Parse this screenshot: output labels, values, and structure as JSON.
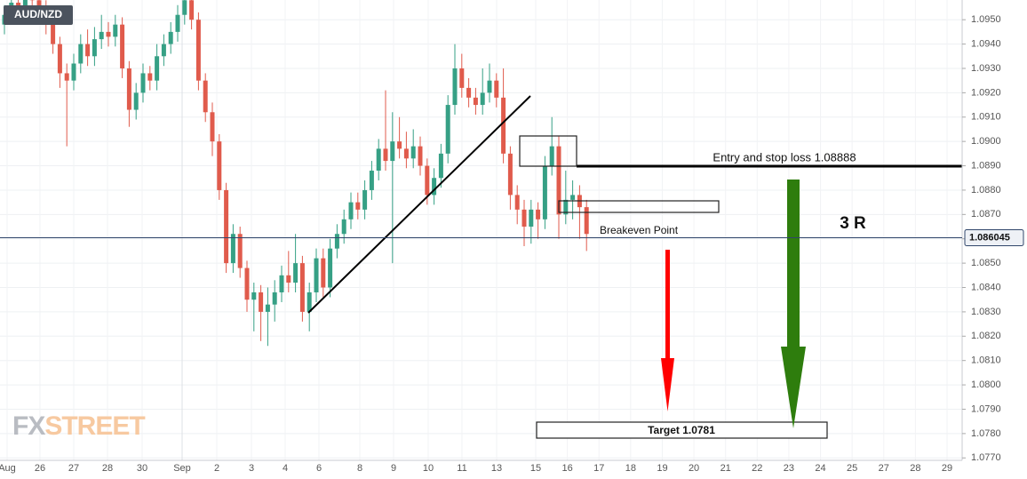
{
  "chart_data": {
    "type": "candlestick",
    "title": "AUD/NZD",
    "up_color": "#36a085",
    "down_color": "#e05b4c",
    "ylim": [
      1.0769,
      1.09581
    ],
    "yticks": [
      {
        "value": 1.095,
        "label": "1.0950"
      },
      {
        "value": 1.094,
        "label": "1.0940"
      },
      {
        "value": 1.093,
        "label": "1.0930"
      },
      {
        "value": 1.092,
        "label": "1.0920"
      },
      {
        "value": 1.091,
        "label": "1.0910"
      },
      {
        "value": 1.09,
        "label": "1.0900"
      },
      {
        "value": 1.089,
        "label": "1.0890"
      },
      {
        "value": 1.088,
        "label": "1.0880"
      },
      {
        "value": 1.087,
        "label": "1.0870"
      },
      {
        "value": 1.086,
        "label": "1.0860"
      },
      {
        "value": 1.085,
        "label": "1.0850"
      },
      {
        "value": 1.084,
        "label": "1.0840"
      },
      {
        "value": 1.083,
        "label": "1.0830"
      },
      {
        "value": 1.082,
        "label": "1.0820"
      },
      {
        "value": 1.081,
        "label": "1.0810"
      },
      {
        "value": 1.08,
        "label": "1.0800"
      },
      {
        "value": 1.079,
        "label": "1.0790"
      },
      {
        "value": 1.078,
        "label": "1.0780"
      },
      {
        "value": 1.077,
        "label": "1.0770"
      }
    ],
    "grid": true,
    "last_price": 1.086045,
    "x_labels": [
      "Aug",
      "26",
      "27",
      "28",
      "30",
      "Sep",
      "2",
      "3",
      "4",
      "6",
      "8",
      "9",
      "10",
      "11",
      "13",
      "15",
      "16",
      "17",
      "18",
      "19",
      "20",
      "21",
      "22",
      "23",
      "24",
      "25",
      "27",
      "28",
      "29"
    ],
    "candles": [
      [
        1.0948,
        1.0956,
        1.0944,
        1.0952
      ],
      [
        1.0952,
        1.0961,
        1.0948,
        1.0957
      ],
      [
        1.0957,
        1.0961,
        1.0951,
        1.0955
      ],
      [
        1.0955,
        1.0964,
        1.0951,
        1.096
      ],
      [
        1.096,
        1.0963,
        1.0954,
        1.0958
      ],
      [
        1.0958,
        1.0962,
        1.0951,
        1.0955
      ],
      [
        1.0955,
        1.0958,
        1.0944,
        1.0948
      ],
      [
        1.0948,
        1.0951,
        1.0936,
        1.094
      ],
      [
        1.094,
        1.0943,
        1.0922,
        1.0928
      ],
      [
        1.0928,
        1.0932,
        1.0898,
        1.0925
      ],
      [
        1.0925,
        1.0936,
        1.0921,
        1.0932
      ],
      [
        1.0932,
        1.0944,
        1.0928,
        1.094
      ],
      [
        1.094,
        1.0946,
        1.0931,
        1.0935
      ],
      [
        1.0935,
        1.0947,
        1.0931,
        1.0942
      ],
      [
        1.0942,
        1.0952,
        1.0938,
        1.0945
      ],
      [
        1.0945,
        1.0949,
        1.0939,
        1.0943
      ],
      [
        1.0943,
        1.0952,
        1.0939,
        1.0948
      ],
      [
        1.0948,
        1.0951,
        1.0926,
        1.093
      ],
      [
        1.093,
        1.0933,
        1.0906,
        1.0913
      ],
      [
        1.0913,
        1.0924,
        1.0909,
        1.092
      ],
      [
        1.092,
        1.0932,
        1.0916,
        1.0928
      ],
      [
        1.0928,
        1.0931,
        1.0921,
        1.0925
      ],
      [
        1.0925,
        1.094,
        1.0921,
        1.0935
      ],
      [
        1.0935,
        1.0944,
        1.0931,
        1.094
      ],
      [
        1.094,
        1.0949,
        1.0936,
        1.0945
      ],
      [
        1.0945,
        1.0956,
        1.0941,
        1.0952
      ],
      [
        1.0952,
        1.0962,
        1.0948,
        1.0958
      ],
      [
        1.0958,
        1.0962,
        1.0946,
        1.095
      ],
      [
        1.095,
        1.0953,
        1.0921,
        1.0925
      ],
      [
        1.0925,
        1.0928,
        1.0908,
        1.0912
      ],
      [
        1.0912,
        1.0916,
        1.0894,
        1.09
      ],
      [
        1.09,
        1.0903,
        1.0876,
        1.088
      ],
      [
        1.088,
        1.0883,
        1.0846,
        1.085
      ],
      [
        1.085,
        1.0866,
        1.0846,
        1.0862
      ],
      [
        1.0862,
        1.0865,
        1.0844,
        1.0848
      ],
      [
        1.0848,
        1.0851,
        1.083,
        1.0835
      ],
      [
        1.0835,
        1.0842,
        1.0822,
        1.0838
      ],
      [
        1.0838,
        1.0841,
        1.0818,
        1.083
      ],
      [
        1.083,
        1.084,
        1.0816,
        1.0833
      ],
      [
        1.0833,
        1.0843,
        1.0826,
        1.0838
      ],
      [
        1.0838,
        1.0849,
        1.0834,
        1.0845
      ],
      [
        1.0845,
        1.0855,
        1.0838,
        1.0842
      ],
      [
        1.0842,
        1.0862,
        1.0838,
        1.085
      ],
      [
        1.085,
        1.0853,
        1.0826,
        1.083
      ],
      [
        1.083,
        1.0842,
        1.0822,
        1.0838
      ],
      [
        1.0838,
        1.0856,
        1.0834,
        1.0852
      ],
      [
        1.0852,
        1.0856,
        1.0836,
        1.084
      ],
      [
        1.084,
        1.086,
        1.0836,
        1.0856
      ],
      [
        1.0856,
        1.0866,
        1.0852,
        1.0862
      ],
      [
        1.0862,
        1.0872,
        1.0858,
        1.0868
      ],
      [
        1.0868,
        1.0879,
        1.0864,
        1.0875
      ],
      [
        1.0875,
        1.0879,
        1.0868,
        1.0872
      ],
      [
        1.0872,
        1.0884,
        1.0868,
        1.088
      ],
      [
        1.088,
        1.0892,
        1.0876,
        1.0888
      ],
      [
        1.0888,
        1.0901,
        1.0884,
        1.0897
      ],
      [
        1.0897,
        1.0921,
        1.0888,
        1.0892
      ],
      [
        1.0892,
        1.0912,
        1.085,
        1.09
      ],
      [
        1.09,
        1.091,
        1.0893,
        1.0897
      ],
      [
        1.0897,
        1.0904,
        1.0889,
        1.0893
      ],
      [
        1.0893,
        1.0905,
        1.0889,
        1.0898
      ],
      [
        1.0898,
        1.0902,
        1.0886,
        1.089
      ],
      [
        1.089,
        1.0893,
        1.0874,
        1.0878
      ],
      [
        1.0878,
        1.0889,
        1.0874,
        1.0885
      ],
      [
        1.0885,
        1.0899,
        1.0881,
        1.0895
      ],
      [
        1.0895,
        1.0919,
        1.0891,
        1.0915
      ],
      [
        1.0915,
        1.094,
        1.0911,
        1.093
      ],
      [
        1.093,
        1.0936,
        1.0918,
        1.0922
      ],
      [
        1.0922,
        1.0926,
        1.0914,
        1.0918
      ],
      [
        1.0918,
        1.0922,
        1.0911,
        1.0915
      ],
      [
        1.0915,
        1.093,
        1.0911,
        1.092
      ],
      [
        1.092,
        1.0932,
        1.0916,
        1.0925
      ],
      [
        1.0925,
        1.0928,
        1.0914,
        1.0918
      ],
      [
        1.0918,
        1.093,
        1.0891,
        1.0895
      ],
      [
        1.0895,
        1.0898,
        1.0872,
        1.0878
      ],
      [
        1.0878,
        1.0882,
        1.0866,
        1.0872
      ],
      [
        1.0872,
        1.0876,
        1.0857,
        1.0865
      ],
      [
        1.0865,
        1.0876,
        1.0858,
        1.0872
      ],
      [
        1.0872,
        1.0875,
        1.086,
        1.0868
      ],
      [
        1.0868,
        1.0894,
        1.0864,
        1.089
      ],
      [
        1.089,
        1.091,
        1.0886,
        1.0898
      ],
      [
        1.0898,
        1.0902,
        1.086,
        1.087
      ],
      [
        1.087,
        1.0888,
        1.0866,
        1.0876
      ],
      [
        1.0876,
        1.0884,
        1.0868,
        1.0878
      ],
      [
        1.0878,
        1.0882,
        1.086,
        1.0873
      ],
      [
        1.0873,
        1.0876,
        1.0855,
        1.0862
      ]
    ],
    "annotations": {
      "entry": "Entry and stop loss 1.08888",
      "risk": "3 R",
      "breakeven": "Breakeven Point",
      "target": "Target 1.0781"
    },
    "logo": {
      "prefix": "FX",
      "suffix": "STREET"
    }
  }
}
